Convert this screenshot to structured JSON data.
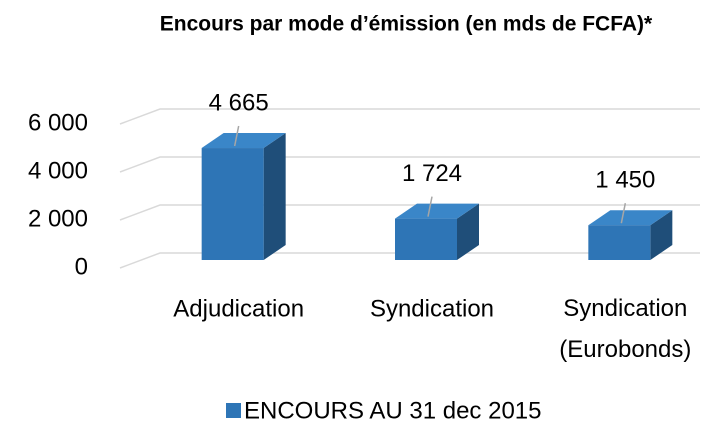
{
  "chart_data": {
    "type": "bar3d",
    "title": "Encours par mode d’émission (en mds de FCFA)*",
    "categories": [
      "Adjudication",
      "Syndication",
      "Syndication (Eurobonds)"
    ],
    "series": [
      {
        "name": "ENCOURS AU 31 dec 2015",
        "color": "#2e75b6",
        "values": [
          4665,
          1724,
          1450
        ],
        "value_labels": [
          "4 665",
          "1 724",
          "1 450"
        ]
      }
    ],
    "ylim": [
      0,
      6000
    ],
    "yticks": [
      0,
      {
        "value": 2000,
        "label": "2 000"
      },
      {
        "value": 4000,
        "label": "4 000"
      },
      {
        "value": 6000,
        "label": "6 000"
      }
    ],
    "grid": true,
    "legend": "bottom"
  }
}
